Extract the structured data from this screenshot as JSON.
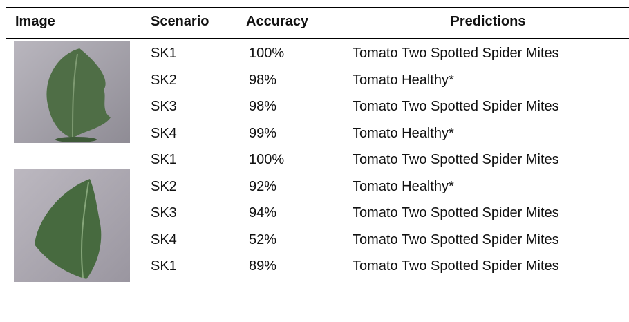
{
  "table": {
    "header": [
      "Image",
      "Scenario",
      "Accuracy",
      "Predictions"
    ],
    "rows": [
      [
        "SK1",
        "100%",
        "Tomato Two Spotted Spider Mites"
      ],
      [
        "SK2",
        "98%",
        "Tomato Healthy*"
      ],
      [
        "SK3",
        "98%",
        "Tomato Two Spotted Spider Mites"
      ],
      [
        "SK4",
        "99%",
        "Tomato Healthy*"
      ],
      [
        "SK1",
        "100%",
        "Tomato Two Spotted Spider Mites"
      ],
      [
        "SK2",
        "92%",
        "Tomato Healthy*"
      ],
      [
        "SK3",
        "94%",
        "Tomato Two Spotted Spider Mites"
      ],
      [
        "SK4",
        "52%",
        "Tomato Two Spotted Spider Mites"
      ],
      [
        "SK1",
        "89%",
        "Tomato Two Spotted Spider Mites"
      ]
    ]
  }
}
